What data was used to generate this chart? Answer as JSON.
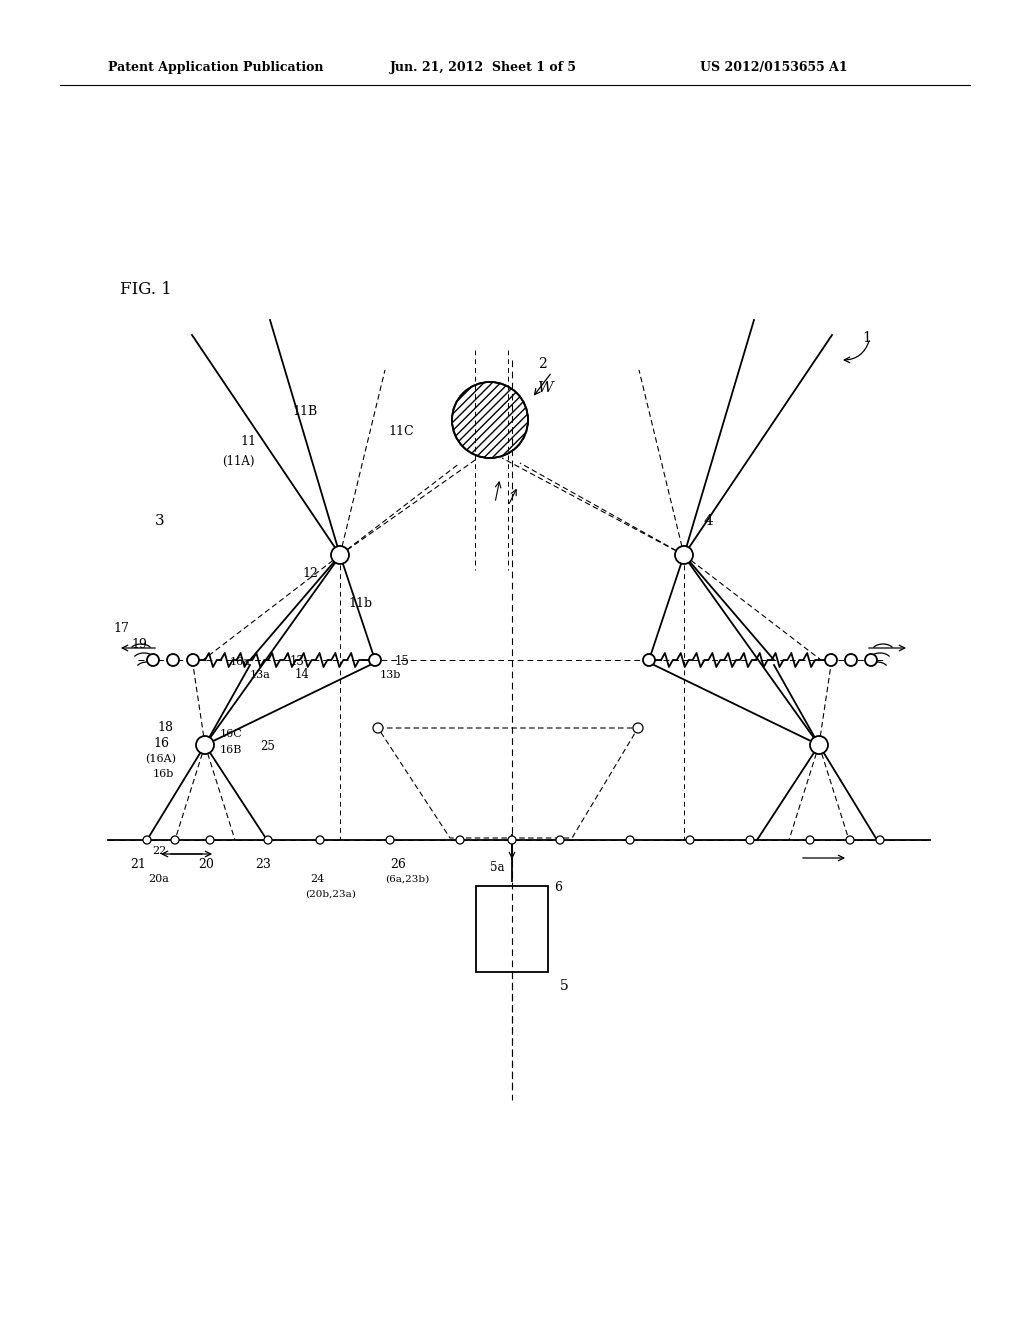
{
  "bg_color": "#ffffff",
  "header_left": "Patent Application Publication",
  "header_mid": "Jun. 21, 2012  Sheet 1 of 5",
  "header_right": "US 2012/0153655 A1",
  "fig_label": "FIG. 1"
}
